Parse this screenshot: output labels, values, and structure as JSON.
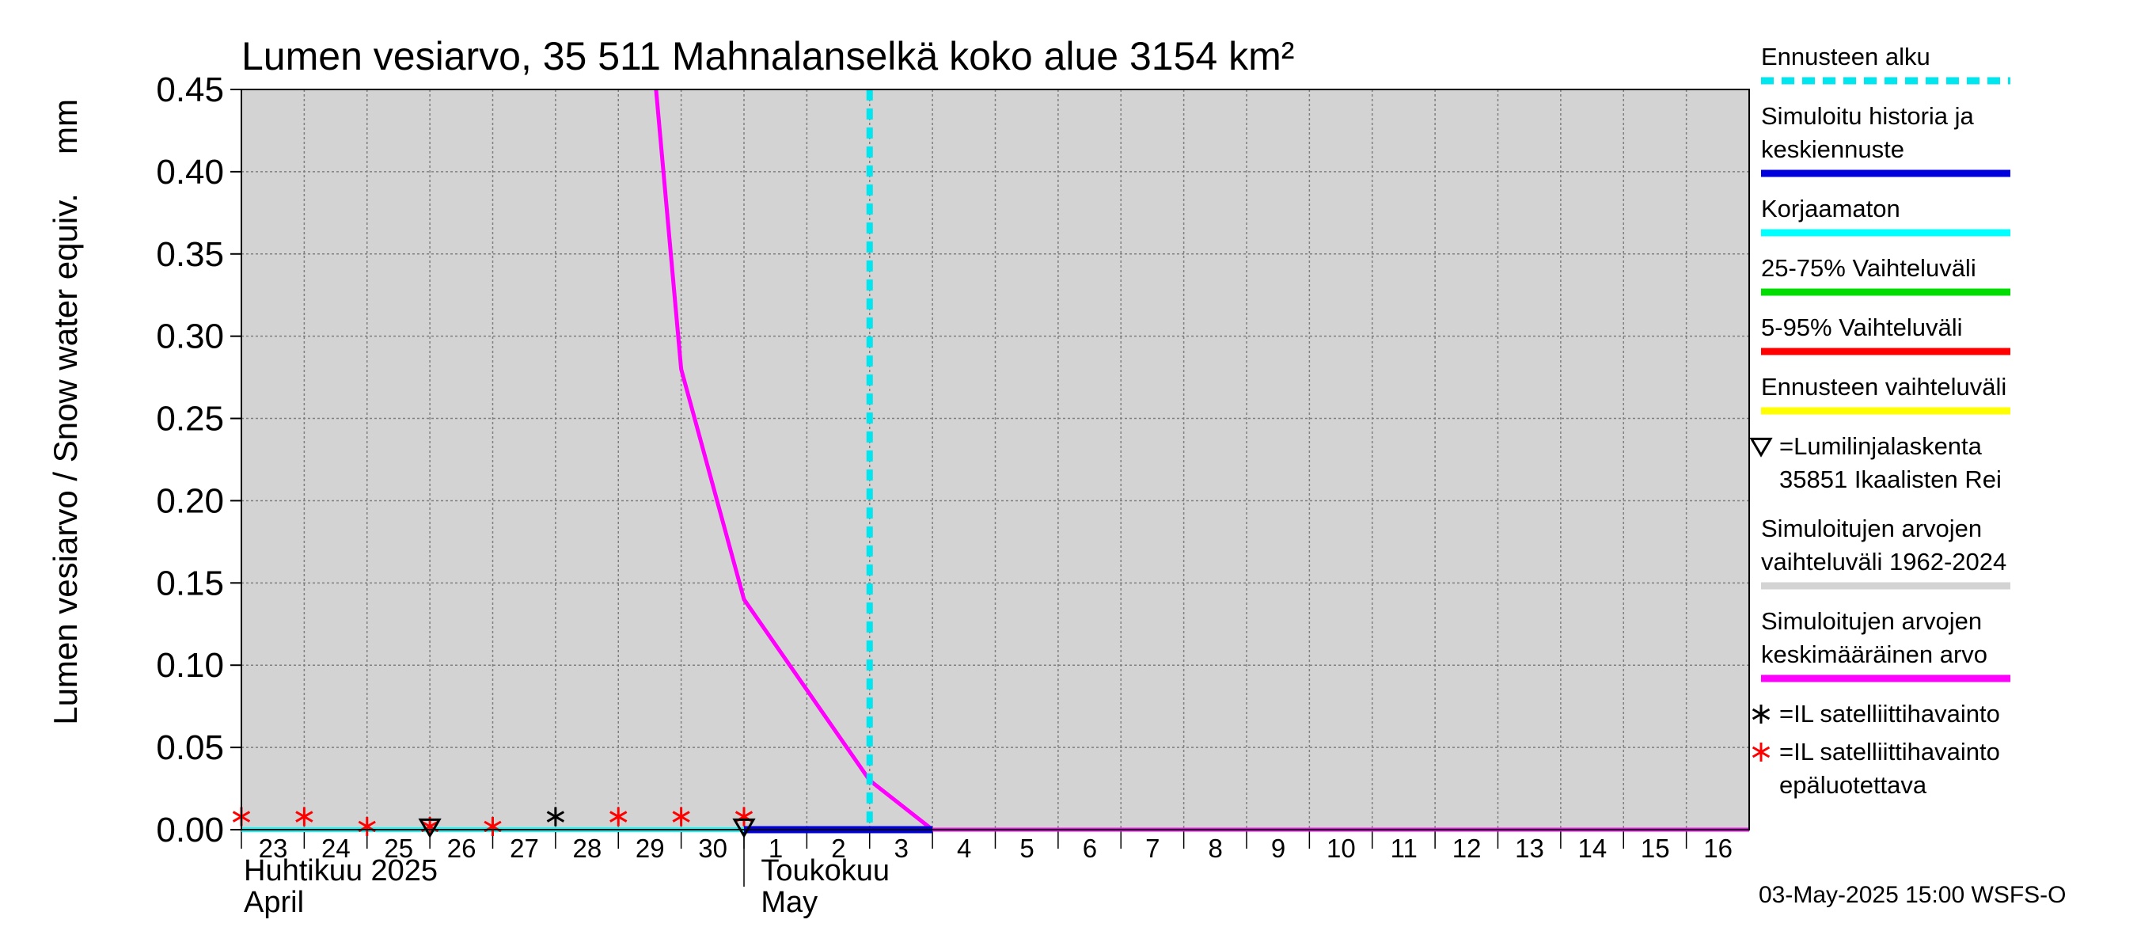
{
  "chart_data": {
    "type": "line",
    "title": "Lumen vesiarvo, 35 511 Mahnalanselkä koko alue 3154 km²",
    "ylabel": "Lumen vesiarvo / Snow water equiv.",
    "yunit": "mm",
    "ylim": [
      0,
      0.45
    ],
    "yticks": [
      "0.00",
      "0.05",
      "0.10",
      "0.15",
      "0.20",
      "0.25",
      "0.30",
      "0.35",
      "0.40",
      "0.45"
    ],
    "xlim": [
      23,
      47
    ],
    "days": [
      {
        "label": "23",
        "x": 23
      },
      {
        "label": "24",
        "x": 24
      },
      {
        "label": "25",
        "x": 25
      },
      {
        "label": "26",
        "x": 26
      },
      {
        "label": "27",
        "x": 27
      },
      {
        "label": "28",
        "x": 28
      },
      {
        "label": "29",
        "x": 29
      },
      {
        "label": "30",
        "x": 30
      },
      {
        "label": "1",
        "x": 31
      },
      {
        "label": "2",
        "x": 32
      },
      {
        "label": "3",
        "x": 33
      },
      {
        "label": "4",
        "x": 34
      },
      {
        "label": "5",
        "x": 35
      },
      {
        "label": "6",
        "x": 36
      },
      {
        "label": "7",
        "x": 37
      },
      {
        "label": "8",
        "x": 38
      },
      {
        "label": "9",
        "x": 39
      },
      {
        "label": "10",
        "x": 40
      },
      {
        "label": "11",
        "x": 41
      },
      {
        "label": "12",
        "x": 42
      },
      {
        "label": "13",
        "x": 43
      },
      {
        "label": "14",
        "x": 44
      },
      {
        "label": "15",
        "x": 45
      },
      {
        "label": "16",
        "x": 46
      }
    ],
    "month_april": {
      "fi": "Huhtikuu  2025",
      "en": "April"
    },
    "month_may": {
      "fi": "Toukokuu",
      "en": "May"
    },
    "forecast_start": 33.0,
    "series": [
      {
        "name": "Simuloitujen arvojen keskimääräinen arvo",
        "color": "#ff00ff",
        "points": [
          [
            29.6,
            0.45
          ],
          [
            30.0,
            0.28
          ],
          [
            31.0,
            0.14
          ],
          [
            33.0,
            0.03
          ],
          [
            34.0,
            0.0
          ],
          [
            47.0,
            0.0
          ]
        ]
      },
      {
        "name": "Simuloitu historia ja keskiennuste",
        "color": "#0000dd",
        "points": [
          [
            31.0,
            0.0
          ],
          [
            34.0,
            0.0
          ]
        ]
      },
      {
        "name": "Korjaamaton",
        "color": "#00ffff",
        "points": [
          [
            23.0,
            0.0
          ],
          [
            31.0,
            0.0
          ]
        ]
      }
    ],
    "satellite_unreliable": [
      [
        23.0,
        0.006
      ],
      [
        24.0,
        0.006
      ],
      [
        25.0,
        0.0
      ],
      [
        26.0,
        0.0
      ],
      [
        27.0,
        0.0
      ],
      [
        29.0,
        0.006
      ],
      [
        30.0,
        0.006
      ],
      [
        31.0,
        0.006
      ]
    ],
    "satellite_reliable": [
      [
        28.0,
        0.006
      ]
    ],
    "snow_course": [
      [
        26.0,
        0.0
      ],
      [
        31.0,
        0.0
      ]
    ]
  },
  "legend": [
    {
      "text": "Ennusteen alku",
      "color": "#00e5ee",
      "style": "dashed"
    },
    {
      "text": "Simuloitu historia ja\nkeskiennuste",
      "color": "#0000dd",
      "style": "solid"
    },
    {
      "text": "Korjaamaton",
      "color": "#00ffff",
      "style": "solid"
    },
    {
      "text": "25-75% Vaihteluväli",
      "color": "#00dd00",
      "style": "solid"
    },
    {
      "text": "5-95% Vaihteluväli",
      "color": "#ff0000",
      "style": "solid"
    },
    {
      "text": "Ennusteen vaihteluväli",
      "color": "#ffff00",
      "style": "solid"
    },
    {
      "text": "=Lumilinjalaskenta\n35851 Ikaalisten Rei",
      "marker": "triangle"
    },
    {
      "text": "Simuloitujen arvojen\nvaihteluväli 1962-2024",
      "color": "#d3d3d3",
      "style": "solid"
    },
    {
      "text": "Simuloitujen arvojen\nkeskimääräinen arvo",
      "color": "#ff00ff",
      "style": "solid"
    },
    {
      "text": "=IL satelliittihavainto",
      "marker": "star-black"
    },
    {
      "text": "=IL satelliittihavainto\nepäluotettava",
      "marker": "star-red"
    }
  ],
  "footer": "03-May-2025 15:00 WSFS-O"
}
